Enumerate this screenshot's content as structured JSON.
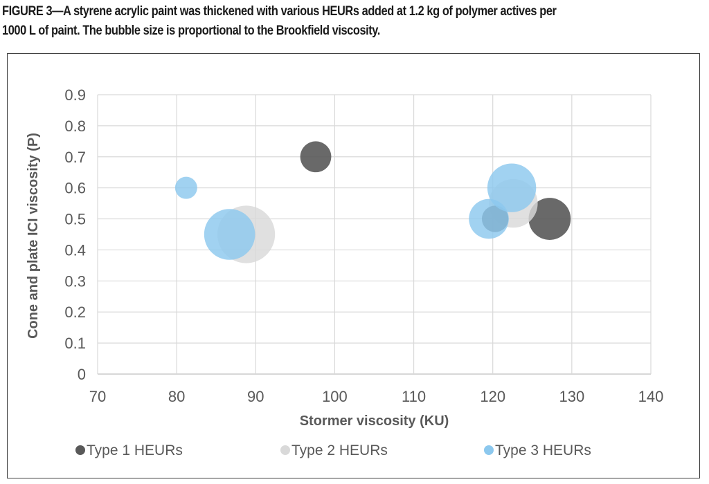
{
  "caption": {
    "line1": "FIGURE 3—A styrene acrylic paint was thickened with various HEURs added at 1.2 kg of polymer actives per",
    "line2": "1000 L of paint. The bubble size is proportional to the Brookfield viscosity."
  },
  "chart_data": {
    "type": "scatter",
    "subtype": "bubble",
    "xlabel": "Stormer viscosity (KU)",
    "ylabel": "Cone and plate ICI viscosity (P)",
    "xlim": [
      70,
      140
    ],
    "ylim": [
      0,
      0.9
    ],
    "xticks": [
      "70",
      "80",
      "90",
      "100",
      "110",
      "120",
      "130",
      "140"
    ],
    "yticks": [
      "0",
      "0.1",
      "0.2",
      "0.3",
      "0.4",
      "0.5",
      "0.6",
      "0.7",
      "0.8",
      "0.9"
    ],
    "grid": true,
    "legend_position": "bottom",
    "bubble_size_encodes": "Brookfield viscosity (relative)",
    "series": [
      {
        "name": "Type 1 HEURs",
        "color": "#595959",
        "points": [
          {
            "x": 97.6,
            "y": 0.7,
            "size": 1.4
          },
          {
            "x": 127.2,
            "y": 0.5,
            "size": 1.9
          },
          {
            "x": 120.3,
            "y": 0.5,
            "size": 1.2
          }
        ]
      },
      {
        "name": "Type 2 HEURs",
        "color": "#d9d9d9",
        "points": [
          {
            "x": 88.8,
            "y": 0.45,
            "size": 2.6
          },
          {
            "x": 122.6,
            "y": 0.55,
            "size": 2.2
          }
        ]
      },
      {
        "name": "Type 3 HEURs",
        "color": "#8cc8ee",
        "points": [
          {
            "x": 81.2,
            "y": 0.6,
            "size": 1.0
          },
          {
            "x": 86.7,
            "y": 0.45,
            "size": 2.3
          },
          {
            "x": 119.5,
            "y": 0.5,
            "size": 1.8
          },
          {
            "x": 122.4,
            "y": 0.6,
            "size": 2.2
          }
        ]
      }
    ]
  }
}
